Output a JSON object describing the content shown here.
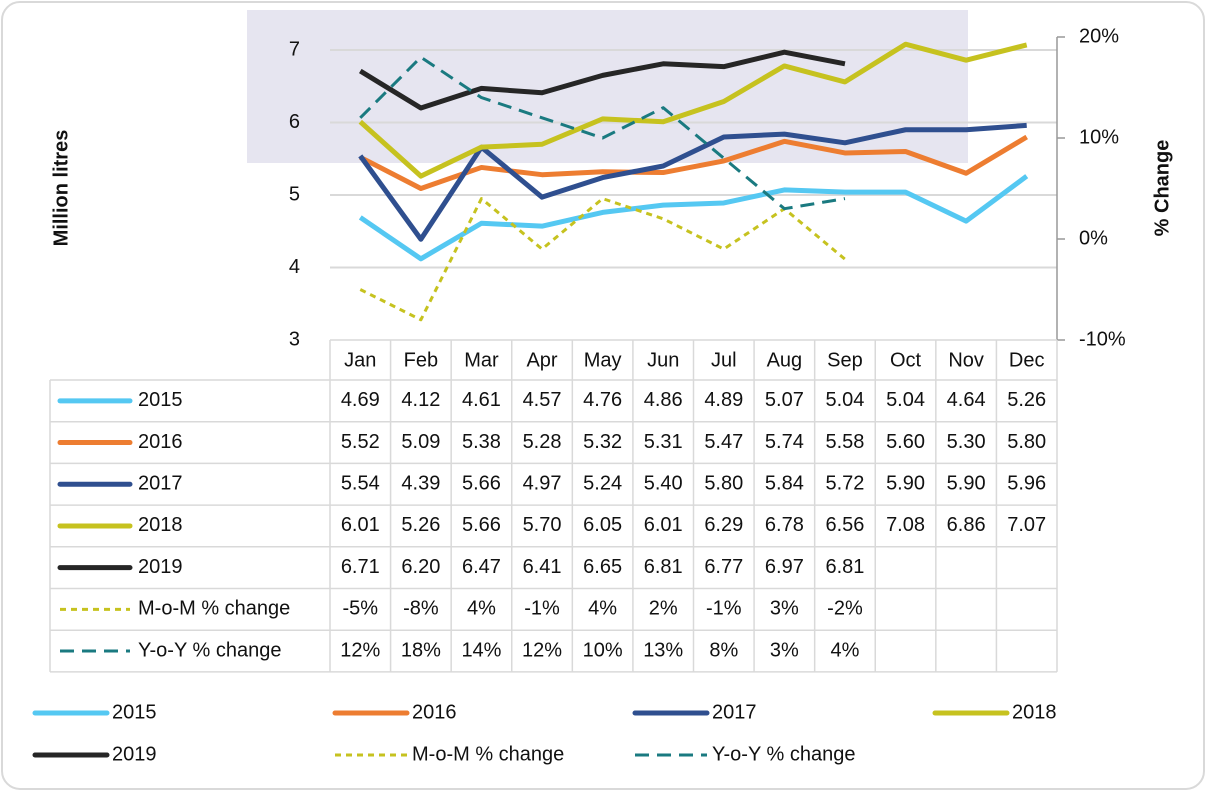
{
  "chart_data": {
    "type": "line",
    "y_label": "Million litres",
    "y2_label": "% Change",
    "categories": [
      "Jan",
      "Feb",
      "Mar",
      "Apr",
      "May",
      "Jun",
      "Jul",
      "Aug",
      "Sep",
      "Oct",
      "Nov",
      "Dec"
    ],
    "ylim": [
      3,
      7
    ],
    "yticks": [
      3,
      4,
      5,
      6,
      7
    ],
    "y2lim": [
      -10,
      20
    ],
    "y2ticks": [
      {
        "value": -10,
        "label": "-10%"
      },
      {
        "value": 0,
        "label": "0%"
      },
      {
        "value": 10,
        "label": "10%"
      },
      {
        "value": 20,
        "label": "20%"
      }
    ],
    "grid": true,
    "series": [
      {
        "name": "2015",
        "color": "#55c8f2",
        "style": "solid",
        "values": [
          4.69,
          4.12,
          4.61,
          4.57,
          4.76,
          4.86,
          4.89,
          5.07,
          5.04,
          5.04,
          4.64,
          5.26
        ],
        "value_labels": [
          "4.69",
          "4.12",
          "4.61",
          "4.57",
          "4.76",
          "4.86",
          "4.89",
          "5.07",
          "5.04",
          "5.04",
          "4.64",
          "5.26"
        ]
      },
      {
        "name": "2016",
        "color": "#ed7d31",
        "style": "solid",
        "values": [
          5.52,
          5.09,
          5.38,
          5.28,
          5.32,
          5.31,
          5.47,
          5.74,
          5.58,
          5.6,
          5.3,
          5.8
        ],
        "value_labels": [
          "5.52",
          "5.09",
          "5.38",
          "5.28",
          "5.32",
          "5.31",
          "5.47",
          "5.74",
          "5.58",
          "5.60",
          "5.30",
          "5.80"
        ]
      },
      {
        "name": "2017",
        "color": "#2f4f8f",
        "style": "solid",
        "values": [
          5.54,
          4.39,
          5.66,
          4.97,
          5.24,
          5.4,
          5.8,
          5.84,
          5.72,
          5.9,
          5.9,
          5.96
        ],
        "value_labels": [
          "5.54",
          "4.39",
          "5.66",
          "4.97",
          "5.24",
          "5.40",
          "5.80",
          "5.84",
          "5.72",
          "5.90",
          "5.90",
          "5.96"
        ]
      },
      {
        "name": "2018",
        "color": "#c6c21f",
        "style": "solid",
        "values": [
          6.01,
          5.26,
          5.66,
          5.7,
          6.05,
          6.01,
          6.29,
          6.78,
          6.56,
          7.08,
          6.86,
          7.07
        ],
        "value_labels": [
          "6.01",
          "5.26",
          "5.66",
          "5.70",
          "6.05",
          "6.01",
          "6.29",
          "6.78",
          "6.56",
          "7.08",
          "6.86",
          "7.07"
        ]
      },
      {
        "name": "2019",
        "color": "#262626",
        "style": "solid",
        "values": [
          6.71,
          6.2,
          6.47,
          6.41,
          6.65,
          6.81,
          6.77,
          6.97,
          6.81,
          null,
          null,
          null
        ],
        "value_labels": [
          "6.71",
          "6.20",
          "6.47",
          "6.41",
          "6.65",
          "6.81",
          "6.77",
          "6.97",
          "6.81",
          null,
          null,
          null
        ]
      },
      {
        "name": "M-o-M % change",
        "color": "#c6c21f",
        "style": "short-dash",
        "axis": "y2",
        "values": [
          -5,
          -8,
          4,
          -1,
          4,
          2,
          -1,
          3,
          -2,
          null,
          null,
          null
        ],
        "value_labels": [
          "-5%",
          "-8%",
          "4%",
          "-1%",
          "4%",
          "2%",
          "-1%",
          "3%",
          "-2%",
          null,
          null,
          null
        ]
      },
      {
        "name": "Y-o-Y % change",
        "color": "#1a7a80",
        "style": "long-dash",
        "axis": "y2",
        "values": [
          12,
          18,
          14,
          12,
          10,
          13,
          8,
          3,
          4,
          null,
          null,
          null
        ],
        "value_labels": [
          "12%",
          "18%",
          "14%",
          "12%",
          "10%",
          "13%",
          "8%",
          "3%",
          "4%",
          null,
          null,
          null
        ]
      }
    ]
  }
}
